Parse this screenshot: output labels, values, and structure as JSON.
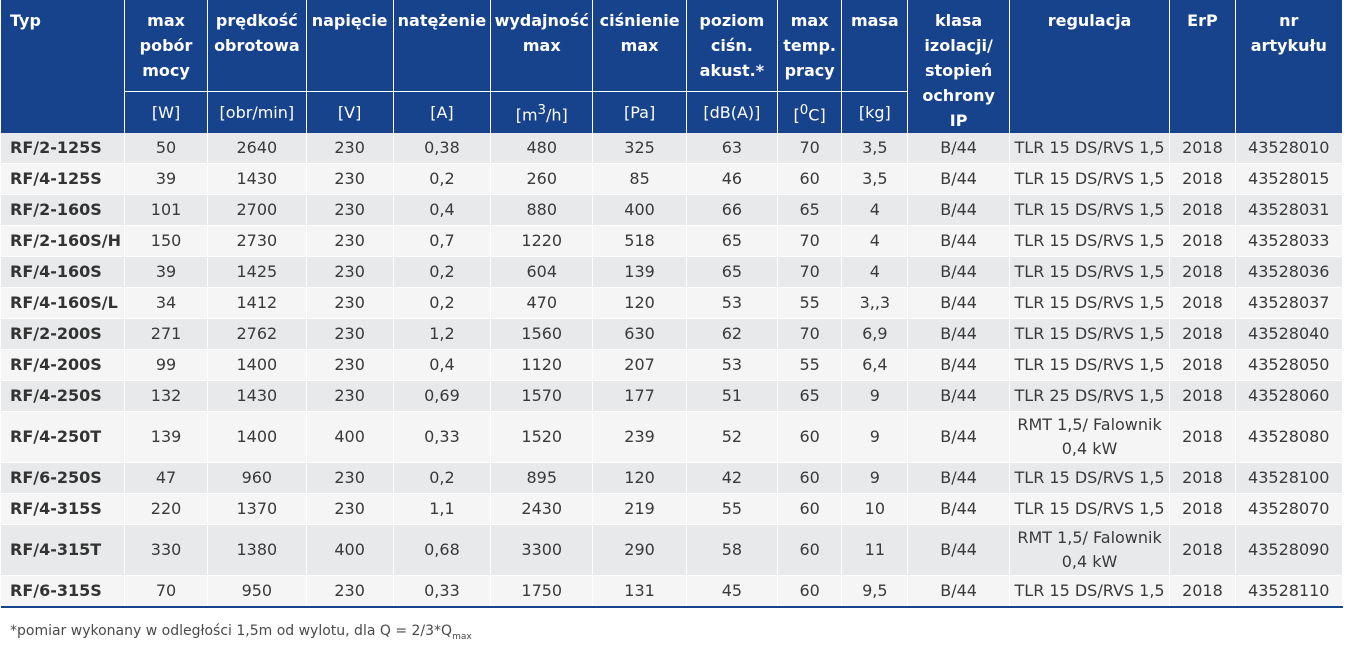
{
  "headers": {
    "typ": "Typ",
    "pobor": "max pobór mocy",
    "predkosc": "prędkość obrotowa",
    "napiecie": "napięcie",
    "natezenie": "natężenie",
    "wydajnosc": "wydajność max",
    "cisnienie": "ciśnienie max",
    "poziom": "poziom ciśn. akust.*",
    "temp": "max temp. pracy",
    "masa": "masa",
    "klasa": "klasa izolacji/ stopień ochrony IP",
    "regulacja": "regulacja",
    "erp": "ErP",
    "artykul": "nr artykułu"
  },
  "units": {
    "pobor": "[W]",
    "predkosc": "[obr/min]",
    "napiecie": "[V]",
    "natezenie": "[A]",
    "wydajnosc_a": "[m",
    "wydajnosc_sup": "3",
    "wydajnosc_b": "/h]",
    "cisnienie": "[Pa]",
    "poziom": "[dB(A)]",
    "temp_a": "[",
    "temp_sup": "0",
    "temp_b": "C]",
    "masa": "[kg]"
  },
  "rows": [
    {
      "typ": "RF/2-125S",
      "pobor": "50",
      "predkosc": "2640",
      "napiecie": "230",
      "natezenie": "0,38",
      "wydajnosc": "480",
      "cisnienie": "325",
      "poziom": "63",
      "temp": "70",
      "masa": "3,5",
      "klasa": "B/44",
      "regulacja": "TLR 15 DS/RVS 1,5",
      "erp": "2018",
      "artykul": "43528010"
    },
    {
      "typ": "RF/4-125S",
      "pobor": "39",
      "predkosc": "1430",
      "napiecie": "230",
      "natezenie": "0,2",
      "wydajnosc": "260",
      "cisnienie": "85",
      "poziom": "46",
      "temp": "60",
      "masa": "3,5",
      "klasa": "B/44",
      "regulacja": "TLR 15 DS/RVS 1,5",
      "erp": "2018",
      "artykul": "43528015"
    },
    {
      "typ": "RF/2-160S",
      "pobor": "101",
      "predkosc": "2700",
      "napiecie": "230",
      "natezenie": "0,4",
      "wydajnosc": "880",
      "cisnienie": "400",
      "poziom": "66",
      "temp": "65",
      "masa": "4",
      "klasa": "B/44",
      "regulacja": "TLR 15 DS/RVS 1,5",
      "erp": "2018",
      "artykul": "43528031"
    },
    {
      "typ": "RF/2-160S/H",
      "pobor": "150",
      "predkosc": "2730",
      "napiecie": "230",
      "natezenie": "0,7",
      "wydajnosc": "1220",
      "cisnienie": "518",
      "poziom": "65",
      "temp": "70",
      "masa": "4",
      "klasa": "B/44",
      "regulacja": "TLR 15 DS/RVS 1,5",
      "erp": "2018",
      "artykul": "43528033"
    },
    {
      "typ": "RF/4-160S",
      "pobor": "39",
      "predkosc": "1425",
      "napiecie": "230",
      "natezenie": "0,2",
      "wydajnosc": "604",
      "cisnienie": "139",
      "poziom": "65",
      "temp": "70",
      "masa": "4",
      "klasa": "B/44",
      "regulacja": "TLR 15 DS/RVS 1,5",
      "erp": "2018",
      "artykul": "43528036"
    },
    {
      "typ": "RF/4-160S/L",
      "pobor": "34",
      "predkosc": "1412",
      "napiecie": "230",
      "natezenie": "0,2",
      "wydajnosc": "470",
      "cisnienie": "120",
      "poziom": "53",
      "temp": "55",
      "masa": "3,,3",
      "klasa": "B/44",
      "regulacja": "TLR 15 DS/RVS 1,5",
      "erp": "2018",
      "artykul": "43528037"
    },
    {
      "typ": "RF/2-200S",
      "pobor": "271",
      "predkosc": "2762",
      "napiecie": "230",
      "natezenie": "1,2",
      "wydajnosc": "1560",
      "cisnienie": "630",
      "poziom": "62",
      "temp": "70",
      "masa": "6,9",
      "klasa": "B/44",
      "regulacja": "TLR 15 DS/RVS 1,5",
      "erp": "2018",
      "artykul": "43528040"
    },
    {
      "typ": "RF/4-200S",
      "pobor": "99",
      "predkosc": "1400",
      "napiecie": "230",
      "natezenie": "0,4",
      "wydajnosc": "1120",
      "cisnienie": "207",
      "poziom": "53",
      "temp": "55",
      "masa": "6,4",
      "klasa": "B/44",
      "regulacja": "TLR 15 DS/RVS 1,5",
      "erp": "2018",
      "artykul": "43528050"
    },
    {
      "typ": "RF/4-250S",
      "pobor": "132",
      "predkosc": "1430",
      "napiecie": "230",
      "natezenie": "0,69",
      "wydajnosc": "1570",
      "cisnienie": "177",
      "poziom": "51",
      "temp": "65",
      "masa": "9",
      "klasa": "B/44",
      "regulacja": "TLR 25 DS/RVS 1,5",
      "erp": "2018",
      "artykul": "43528060"
    },
    {
      "typ": "RF/4-250T",
      "pobor": "139",
      "predkosc": "1400",
      "napiecie": "400",
      "natezenie": "0,33",
      "wydajnosc": "1520",
      "cisnienie": "239",
      "poziom": "52",
      "temp": "60",
      "masa": "9",
      "klasa": "B/44",
      "regulacja": "RMT 1,5/ Falownik 0,4 kW",
      "erp": "2018",
      "artykul": "43528080",
      "tall": true
    },
    {
      "typ": "RF/6-250S",
      "pobor": "47",
      "predkosc": "960",
      "napiecie": "230",
      "natezenie": "0,2",
      "wydajnosc": "895",
      "cisnienie": "120",
      "poziom": "42",
      "temp": "60",
      "masa": "9",
      "klasa": "B/44",
      "regulacja": "TLR 15 DS/RVS 1,5",
      "erp": "2018",
      "artykul": "43528100"
    },
    {
      "typ": "RF/4-315S",
      "pobor": "220",
      "predkosc": "1370",
      "napiecie": "230",
      "natezenie": "1,1",
      "wydajnosc": "2430",
      "cisnienie": "219",
      "poziom": "55",
      "temp": "60",
      "masa": "10",
      "klasa": "B/44",
      "regulacja": "TLR 15 DS/RVS 1,5",
      "erp": "2018",
      "artykul": "43528070"
    },
    {
      "typ": "RF/4-315T",
      "pobor": "330",
      "predkosc": "1380",
      "napiecie": "400",
      "natezenie": "0,68",
      "wydajnosc": "3300",
      "cisnienie": "290",
      "poziom": "58",
      "temp": "60",
      "masa": "11",
      "klasa": "B/44",
      "regulacja": "RMT 1,5/ Falownik 0,4 kW",
      "erp": "2018",
      "artykul": "43528090",
      "tall": true
    },
    {
      "typ": "RF/6-315S",
      "pobor": "70",
      "predkosc": "950",
      "napiecie": "230",
      "natezenie": "0,33",
      "wydajnosc": "1750",
      "cisnienie": "131",
      "poziom": "45",
      "temp": "60",
      "masa": "9,5",
      "klasa": "B/44",
      "regulacja": "TLR 15 DS/RVS 1,5",
      "erp": "2018",
      "artykul": "43528110"
    }
  ],
  "footnote": {
    "text": "*pomiar wykonany w odległości 1,5m od wylotu, dla Q = 2/3*Q",
    "sub": "max"
  },
  "colors": {
    "header_bg": "#17428c",
    "row_odd": "#e8e9ea",
    "row_even": "#f5f5f6"
  }
}
